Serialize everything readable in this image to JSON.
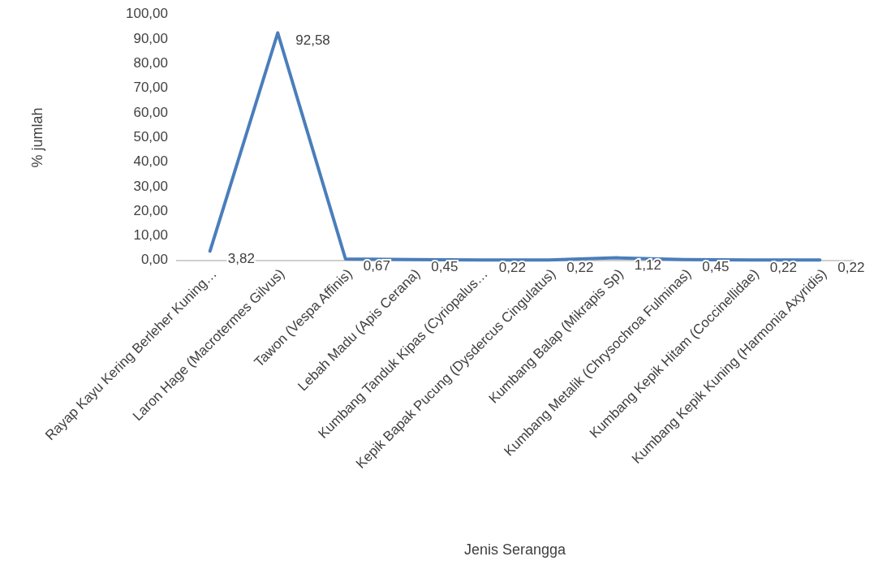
{
  "chart_data": {
    "type": "line",
    "xlabel": "Jenis Serangga",
    "ylabel": "% jumlah",
    "categories": [
      "Rayap Kayu Kering Berleher Kuning…",
      "Laron Hage (Macrotermes Gilvus)",
      "Tawon (Vespa Affinis)",
      "Lebah Madu (Apis Cerana)",
      "Kumbang Tanduk Kipas (Cyriopalus…",
      "Kepik Bapak Pucung (Dysdercus Cingulatus)",
      "Kumbang Balap (Mikrapis Sp)",
      "Kumbang Metalik (Chrysochroa Fulminas)",
      "Kumbang Kepik Hitam (Coccinellidae)",
      "Kumbang Kepik Kuning (Harmonia Axyridis)"
    ],
    "series": [
      {
        "color": "#4a7ebb",
        "values": [
          3.82,
          92.58,
          0.67,
          0.45,
          0.22,
          0.22,
          1.12,
          0.45,
          0.22,
          0.22
        ],
        "value_labels": [
          "3,82",
          "92,58",
          "0,67",
          "0,45",
          "0,22",
          "0,22",
          "1,12",
          "0,45",
          "0,22",
          "0,22"
        ]
      }
    ],
    "ylim": [
      0,
      100
    ],
    "yticks": [
      {
        "value": 0,
        "label": "0,00"
      },
      {
        "value": 10,
        "label": "10,00"
      },
      {
        "value": 20,
        "label": "20,00"
      },
      {
        "value": 30,
        "label": "30,00"
      },
      {
        "value": 40,
        "label": "40,00"
      },
      {
        "value": 50,
        "label": "50,00"
      },
      {
        "value": 60,
        "label": "60,00"
      },
      {
        "value": 70,
        "label": "70,00"
      },
      {
        "value": 80,
        "label": "80,00"
      },
      {
        "value": 90,
        "label": "90,00"
      },
      {
        "value": 100,
        "label": "100,00"
      }
    ],
    "grid": false,
    "marker": "none",
    "line_style": "solid"
  }
}
